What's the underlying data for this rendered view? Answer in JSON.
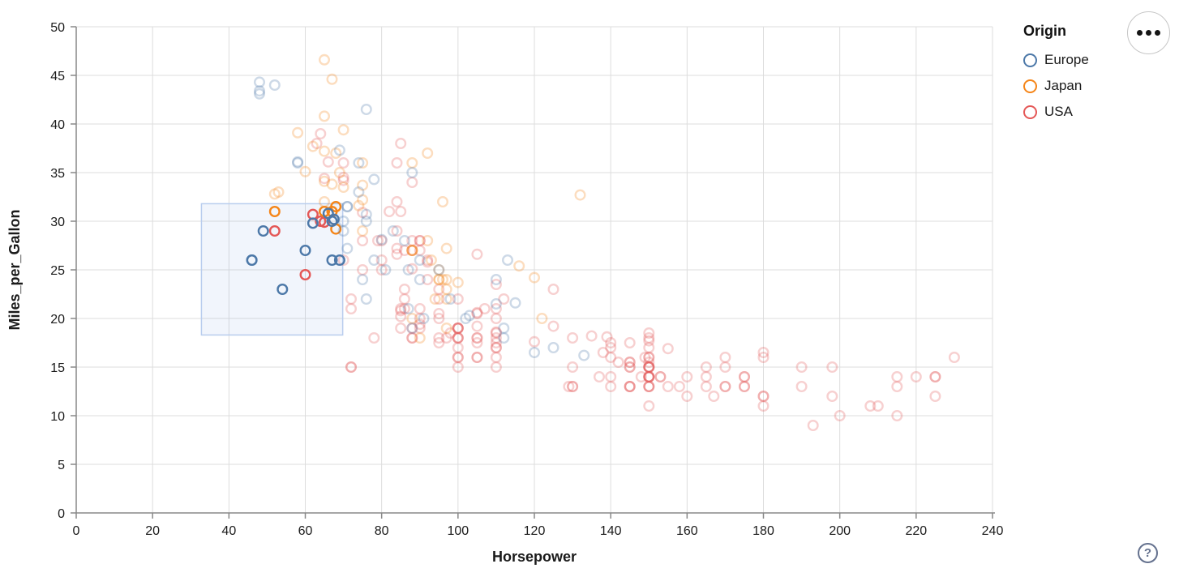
{
  "chart_data": {
    "type": "scatter",
    "xlabel": "Horsepower",
    "ylabel": "Miles_per_Gallon",
    "xlim": [
      0,
      240
    ],
    "ylim": [
      0,
      50
    ],
    "xticks": [
      0,
      20,
      40,
      60,
      80,
      100,
      120,
      140,
      160,
      180,
      200,
      220,
      240
    ],
    "yticks": [
      0,
      5,
      10,
      15,
      20,
      25,
      30,
      35,
      40,
      45,
      50
    ],
    "grid": true,
    "legend": {
      "title": "Origin",
      "position": "top-right",
      "entries": [
        {
          "label": "Europe",
          "code": "E",
          "color": "#4c78a8"
        },
        {
          "label": "Japan",
          "code": "J",
          "color": "#f58518"
        },
        {
          "label": "USA",
          "code": "U",
          "color": "#e45756"
        }
      ]
    },
    "brush": {
      "x": [
        32.8,
        69.8
      ],
      "y": [
        18.3,
        31.8
      ],
      "fill": "rgba(120,160,230,0.10)",
      "stroke": "#b9cdee"
    },
    "style": {
      "unselected_opacity": 0.28,
      "selected_opacity": 1.0,
      "point_radius": 5.8,
      "point_stroke_width": 2.4,
      "grid_color": "#dddddd",
      "axis_color": "#888888"
    },
    "points": [
      [
        130,
        18,
        "U"
      ],
      [
        165,
        15,
        "U"
      ],
      [
        150,
        18,
        "U"
      ],
      [
        150,
        16,
        "U"
      ],
      [
        140,
        17,
        "U"
      ],
      [
        198,
        15,
        "U"
      ],
      [
        220,
        14,
        "U"
      ],
      [
        215,
        14,
        "U"
      ],
      [
        225,
        14,
        "U"
      ],
      [
        190,
        15,
        "U"
      ],
      [
        170,
        15,
        "U"
      ],
      [
        160,
        14,
        "U"
      ],
      [
        150,
        15,
        "U"
      ],
      [
        225,
        14,
        "U"
      ],
      [
        95,
        22,
        "U"
      ],
      [
        97,
        18,
        "U"
      ],
      [
        85,
        21,
        "U"
      ],
      [
        90,
        21,
        "U"
      ],
      [
        215,
        10,
        "U"
      ],
      [
        200,
        10,
        "U"
      ],
      [
        210,
        11,
        "U"
      ],
      [
        193,
        9,
        "U"
      ],
      [
        90,
        28,
        "U"
      ],
      [
        100,
        19,
        "U"
      ],
      [
        105,
        16,
        "U"
      ],
      [
        100,
        17,
        "U"
      ],
      [
        88,
        19,
        "U"
      ],
      [
        100,
        18,
        "U"
      ],
      [
        165,
        14,
        "U"
      ],
      [
        175,
        14,
        "U"
      ],
      [
        153,
        14,
        "U"
      ],
      [
        150,
        14,
        "U"
      ],
      [
        180,
        12,
        "U"
      ],
      [
        170,
        13,
        "U"
      ],
      [
        175,
        13,
        "U"
      ],
      [
        110,
        18,
        "U"
      ],
      [
        72,
        22,
        "U"
      ],
      [
        100,
        19,
        "U"
      ],
      [
        88,
        18,
        "U"
      ],
      [
        86,
        23,
        "U"
      ],
      [
        70,
        26,
        "U"
      ],
      [
        80,
        25,
        "U"
      ],
      [
        90,
        20,
        "U"
      ],
      [
        86,
        21,
        "U"
      ],
      [
        165,
        13,
        "U"
      ],
      [
        175,
        14,
        "U"
      ],
      [
        150,
        15,
        "U"
      ],
      [
        153,
        14,
        "U"
      ],
      [
        150,
        17,
        "U"
      ],
      [
        208,
        11,
        "U"
      ],
      [
        155,
        13,
        "U"
      ],
      [
        160,
        12,
        "U"
      ],
      [
        190,
        13,
        "U"
      ],
      [
        150,
        15,
        "U"
      ],
      [
        130,
        13,
        "U"
      ],
      [
        140,
        13,
        "U"
      ],
      [
        150,
        14,
        "U"
      ],
      [
        86,
        22,
        "U"
      ],
      [
        80,
        28,
        "U"
      ],
      [
        145,
        13,
        "U"
      ],
      [
        150,
        14,
        "U"
      ],
      [
        145,
        13,
        "U"
      ],
      [
        137,
        14,
        "U"
      ],
      [
        150,
        15,
        "U"
      ],
      [
        198,
        12,
        "U"
      ],
      [
        150,
        13,
        "U"
      ],
      [
        158,
        13,
        "U"
      ],
      [
        150,
        14,
        "U"
      ],
      [
        215,
        13,
        "U"
      ],
      [
        225,
        12,
        "U"
      ],
      [
        175,
        13,
        "U"
      ],
      [
        105,
        18,
        "U"
      ],
      [
        100,
        16,
        "U"
      ],
      [
        100,
        18,
        "U"
      ],
      [
        88,
        18,
        "U"
      ],
      [
        95,
        23,
        "U"
      ],
      [
        150,
        11,
        "U"
      ],
      [
        167,
        12,
        "U"
      ],
      [
        170,
        13,
        "U"
      ],
      [
        180,
        12,
        "U"
      ],
      [
        100,
        18,
        "U"
      ],
      [
        72,
        21,
        "U"
      ],
      [
        85,
        19,
        "U"
      ],
      [
        107,
        21,
        "U"
      ],
      [
        145,
        15,
        "U"
      ],
      [
        230,
        16,
        "U"
      ],
      [
        150,
        15,
        "U"
      ],
      [
        180,
        11,
        "U"
      ],
      [
        95,
        20,
        "U"
      ],
      [
        100,
        19,
        "U"
      ],
      [
        100,
        15,
        "U"
      ],
      [
        75,
        25,
        "U"
      ],
      [
        80,
        26,
        "U"
      ],
      [
        100,
        16,
        "U"
      ],
      [
        110,
        16,
        "U"
      ],
      [
        105,
        18,
        "U"
      ],
      [
        140,
        16,
        "U"
      ],
      [
        150,
        13,
        "U"
      ],
      [
        150,
        14,
        "U"
      ],
      [
        140,
        14,
        "U"
      ],
      [
        75,
        28,
        "U"
      ],
      [
        72,
        15,
        "U"
      ],
      [
        72,
        15,
        "U"
      ],
      [
        170,
        16,
        "U"
      ],
      [
        145,
        15,
        "U"
      ],
      [
        150,
        16,
        "U"
      ],
      [
        148,
        14,
        "U"
      ],
      [
        110,
        17,
        "U"
      ],
      [
        105,
        16,
        "U"
      ],
      [
        110,
        15,
        "U"
      ],
      [
        95,
        18,
        "U"
      ],
      [
        110,
        21,
        "U"
      ],
      [
        110,
        20,
        "U"
      ],
      [
        129,
        13,
        "U"
      ],
      [
        52,
        29,
        "U"
      ],
      [
        60,
        24.5,
        "U"
      ],
      [
        62,
        30.7,
        "U"
      ],
      [
        64,
        30,
        "U"
      ],
      [
        100,
        22,
        "U"
      ],
      [
        90,
        19,
        "U"
      ],
      [
        78,
        18,
        "U"
      ],
      [
        180,
        16.5,
        "U"
      ],
      [
        145,
        13,
        "U"
      ],
      [
        130,
        13,
        "U"
      ],
      [
        150,
        13,
        "U"
      ],
      [
        110,
        17.5,
        "U"
      ],
      [
        110,
        18.5,
        "U"
      ],
      [
        95,
        17.5,
        "U"
      ],
      [
        105,
        17.5,
        "U"
      ],
      [
        105,
        20.5,
        "U"
      ],
      [
        100,
        19,
        "U"
      ],
      [
        98,
        18.5,
        "U"
      ],
      [
        145,
        15.5,
        "U"
      ],
      [
        130,
        15,
        "U"
      ],
      [
        110,
        17,
        "U"
      ],
      [
        145,
        17.5,
        "U"
      ],
      [
        180,
        16,
        "U"
      ],
      [
        145,
        15.5,
        "U"
      ],
      [
        150,
        15.5,
        "U"
      ],
      [
        149,
        16,
        "U"
      ],
      [
        140,
        17.5,
        "U"
      ],
      [
        139,
        18.1,
        "U"
      ],
      [
        95,
        20.5,
        "U"
      ],
      [
        85,
        20.2,
        "U"
      ],
      [
        88,
        25.1,
        "U"
      ],
      [
        90,
        19.4,
        "U"
      ],
      [
        105,
        20.6,
        "U"
      ],
      [
        85,
        20.8,
        "U"
      ],
      [
        110,
        18.6,
        "U"
      ],
      [
        105,
        19.2,
        "U"
      ],
      [
        125,
        19.2,
        "U"
      ],
      [
        142,
        15.5,
        "U"
      ],
      [
        155,
        16.9,
        "U"
      ],
      [
        150,
        18.5,
        "U"
      ],
      [
        135,
        18.2,
        "U"
      ],
      [
        125,
        23,
        "U"
      ],
      [
        90,
        28,
        "U"
      ],
      [
        110,
        23.5,
        "U"
      ],
      [
        84,
        27.2,
        "U"
      ],
      [
        92,
        25.8,
        "U"
      ],
      [
        88,
        28,
        "U"
      ],
      [
        88,
        27,
        "U"
      ],
      [
        88,
        34,
        "U"
      ],
      [
        85,
        31,
        "U"
      ],
      [
        84,
        29,
        "U"
      ],
      [
        90,
        27,
        "U"
      ],
      [
        84,
        26.6,
        "U"
      ],
      [
        92,
        24,
        "U"
      ],
      [
        70,
        34.2,
        "U"
      ],
      [
        70,
        34.5,
        "U"
      ],
      [
        75,
        30.9,
        "U"
      ],
      [
        65,
        34.4,
        "U"
      ],
      [
        65,
        29.9,
        "U"
      ],
      [
        63,
        38,
        "U"
      ],
      [
        70,
        36,
        "U"
      ],
      [
        66,
        36.1,
        "U"
      ],
      [
        84,
        36,
        "U"
      ],
      [
        85,
        38,
        "U"
      ],
      [
        79,
        28,
        "U"
      ],
      [
        82,
        31,
        "U"
      ],
      [
        86,
        27,
        "U"
      ],
      [
        84,
        32,
        "U"
      ],
      [
        112,
        22,
        "U"
      ],
      [
        92,
        26,
        "U"
      ],
      [
        120,
        17.6,
        "U"
      ],
      [
        138,
        16.5,
        "U"
      ],
      [
        105,
        26.6,
        "U"
      ],
      [
        150,
        17.7,
        "U"
      ],
      [
        64,
        39,
        "U"
      ],
      [
        95,
        24,
        "J"
      ],
      [
        88,
        27,
        "J"
      ],
      [
        88,
        27,
        "J"
      ],
      [
        95,
        25,
        "J"
      ],
      [
        65,
        31,
        "J"
      ],
      [
        69,
        35,
        "J"
      ],
      [
        95,
        24,
        "J"
      ],
      [
        97,
        19,
        "J"
      ],
      [
        92,
        28,
        "J"
      ],
      [
        97,
        23,
        "J"
      ],
      [
        88,
        27,
        "J"
      ],
      [
        88,
        20,
        "J"
      ],
      [
        94,
        22,
        "J"
      ],
      [
        90,
        18,
        "J"
      ],
      [
        122,
        20,
        "J"
      ],
      [
        67,
        31,
        "J"
      ],
      [
        65,
        32,
        "J"
      ],
      [
        52,
        31,
        "J"
      ],
      [
        97,
        24,
        "J"
      ],
      [
        96,
        24,
        "J"
      ],
      [
        75,
        29,
        "J"
      ],
      [
        53,
        33,
        "J"
      ],
      [
        93,
        26,
        "J"
      ],
      [
        52,
        32.8,
        "J"
      ],
      [
        97,
        22,
        "J"
      ],
      [
        68,
        31.5,
        "J"
      ],
      [
        70,
        33.5,
        "J"
      ],
      [
        70,
        39.4,
        "J"
      ],
      [
        65,
        34.1,
        "J"
      ],
      [
        132,
        32.7,
        "J"
      ],
      [
        97,
        27.2,
        "J"
      ],
      [
        68,
        37,
        "J"
      ],
      [
        65,
        37.2,
        "J"
      ],
      [
        75,
        36,
        "J"
      ],
      [
        96,
        32,
        "J"
      ],
      [
        116,
        25.4,
        "J"
      ],
      [
        120,
        24.2,
        "J"
      ],
      [
        74,
        31.6,
        "J"
      ],
      [
        88,
        36,
        "J"
      ],
      [
        100,
        23.7,
        "J"
      ],
      [
        67,
        33.8,
        "J"
      ],
      [
        60,
        35.1,
        "J"
      ],
      [
        75,
        33.7,
        "J"
      ],
      [
        58,
        39.1,
        "J"
      ],
      [
        65,
        46.6,
        "J"
      ],
      [
        67,
        44.6,
        "J"
      ],
      [
        65,
        40.8,
        "J"
      ],
      [
        62,
        37.7,
        "J"
      ],
      [
        92,
        37,
        "J"
      ],
      [
        75,
        32.2,
        "J"
      ],
      [
        68,
        29.2,
        "J"
      ],
      [
        113,
        26,
        "E"
      ],
      [
        90,
        24,
        "E"
      ],
      [
        95,
        25,
        "E"
      ],
      [
        87,
        25,
        "E"
      ],
      [
        46,
        26,
        "E"
      ],
      [
        70,
        30,
        "E"
      ],
      [
        76,
        30,
        "E"
      ],
      [
        60,
        27,
        "E"
      ],
      [
        112,
        18,
        "E"
      ],
      [
        76,
        22,
        "E"
      ],
      [
        87,
        21,
        "E"
      ],
      [
        69,
        26,
        "E"
      ],
      [
        54,
        23,
        "E"
      ],
      [
        90,
        26,
        "E"
      ],
      [
        49,
        29,
        "E"
      ],
      [
        75,
        24,
        "E"
      ],
      [
        91,
        20,
        "E"
      ],
      [
        112,
        19,
        "E"
      ],
      [
        110,
        24,
        "E"
      ],
      [
        83,
        29,
        "E"
      ],
      [
        67,
        26,
        "E"
      ],
      [
        78,
        26,
        "E"
      ],
      [
        46,
        26,
        "E"
      ],
      [
        48,
        43.1,
        "E"
      ],
      [
        48,
        44.3,
        "E"
      ],
      [
        48,
        43.4,
        "E"
      ],
      [
        52,
        44,
        "E"
      ],
      [
        76,
        41.5,
        "E"
      ],
      [
        70,
        29,
        "E"
      ],
      [
        102,
        20,
        "E"
      ],
      [
        88,
        19,
        "E"
      ],
      [
        110,
        21.5,
        "E"
      ],
      [
        78,
        34.3,
        "E"
      ],
      [
        71,
        31.5,
        "E"
      ],
      [
        71,
        31.5,
        "E"
      ],
      [
        120,
        16.5,
        "E"
      ],
      [
        125,
        17,
        "E"
      ],
      [
        133,
        16.2,
        "E"
      ],
      [
        69,
        37.3,
        "E"
      ],
      [
        115,
        21.6,
        "E"
      ],
      [
        67,
        30,
        "E"
      ],
      [
        103,
        20.3,
        "E"
      ],
      [
        71,
        27.2,
        "E"
      ],
      [
        76,
        30.7,
        "E"
      ],
      [
        74,
        33,
        "E"
      ],
      [
        58,
        36.1,
        "E"
      ],
      [
        80,
        28.1,
        "E"
      ],
      [
        74,
        36,
        "E"
      ],
      [
        98,
        22,
        "E"
      ],
      [
        86,
        28,
        "E"
      ],
      [
        81,
        25,
        "E"
      ],
      [
        58,
        36,
        "E"
      ],
      [
        88,
        35,
        "E"
      ],
      [
        62,
        29.8,
        "E"
      ],
      [
        66,
        30.8,
        "E"
      ],
      [
        67.5,
        30.2,
        "E"
      ]
    ]
  },
  "controls": {
    "actions_button_tooltip": "Click to view actions",
    "help_label": "?"
  }
}
